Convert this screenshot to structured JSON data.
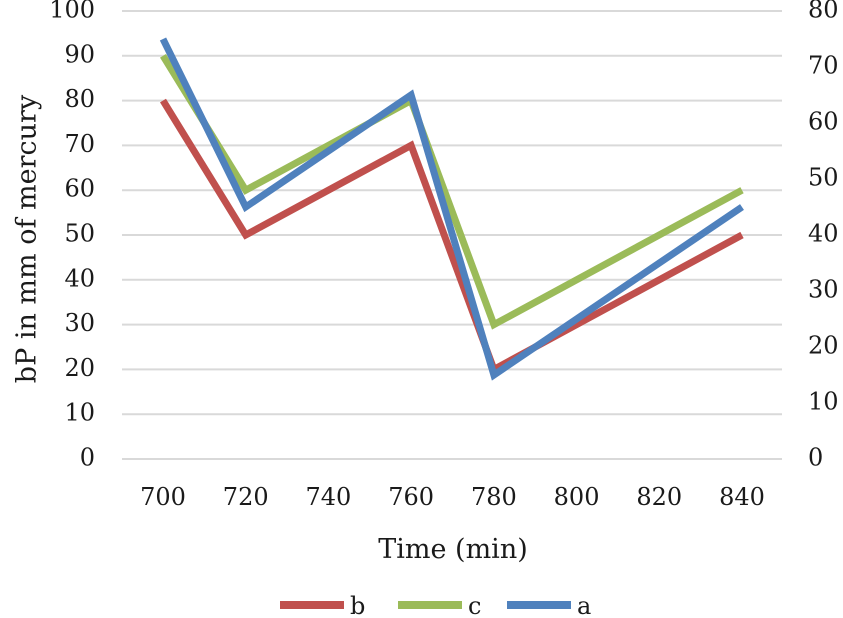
{
  "chart_data": {
    "type": "line",
    "title": "",
    "xlabel": "Time (min)",
    "ylabel": "bP in mm of mercury",
    "x_ticks": [
      700,
      720,
      740,
      760,
      780,
      800,
      820,
      840
    ],
    "xlim": [
      700,
      840
    ],
    "y_left": {
      "range": [
        0,
        100
      ],
      "ticks": [
        0,
        10,
        20,
        30,
        40,
        50,
        60,
        70,
        80,
        90,
        100
      ]
    },
    "y_right": {
      "range": [
        0,
        80
      ],
      "ticks": [
        0,
        10,
        20,
        30,
        40,
        50,
        60,
        70,
        80
      ]
    },
    "grid": true,
    "legend": "bottom",
    "series": [
      {
        "name": "b",
        "color": "#c0504d",
        "axis": "left",
        "x": [
          700,
          720,
          760,
          780,
          840
        ],
        "y": [
          80,
          50,
          70,
          20,
          50
        ]
      },
      {
        "name": "c",
        "color": "#9bbb59",
        "axis": "left",
        "x": [
          700,
          720,
          760,
          780,
          840
        ],
        "y": [
          90,
          60,
          80,
          30,
          60
        ]
      },
      {
        "name": "a",
        "color": "#4f81bd",
        "axis": "right",
        "x": [
          700,
          720,
          760,
          780,
          840
        ],
        "y": [
          75,
          45,
          65,
          15,
          45
        ]
      }
    ]
  }
}
